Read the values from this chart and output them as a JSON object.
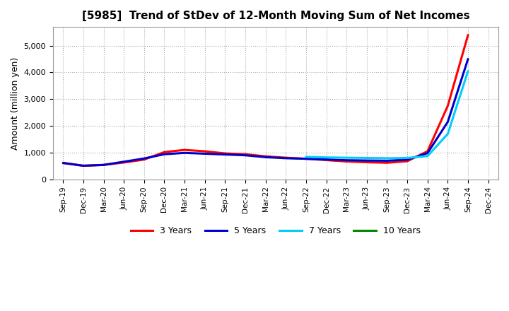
{
  "title": "[5985]  Trend of StDev of 12-Month Moving Sum of Net Incomes",
  "ylabel": "Amount (million yen)",
  "background_color": "#ffffff",
  "grid_color": "#aaaaaa",
  "series": {
    "3 Years": {
      "color": "#ff0000",
      "indices": [
        0,
        1,
        2,
        3,
        4,
        5,
        6,
        7,
        8,
        9,
        10,
        11,
        12,
        13,
        14,
        15,
        16,
        17,
        18,
        19,
        20
      ],
      "values": [
        620,
        510,
        540,
        630,
        740,
        1020,
        1100,
        1050,
        970,
        940,
        860,
        810,
        770,
        720,
        670,
        640,
        620,
        680,
        1050,
        2750,
        5400
      ]
    },
    "5 Years": {
      "color": "#0000cc",
      "indices": [
        0,
        1,
        2,
        3,
        4,
        5,
        6,
        7,
        8,
        9,
        10,
        11,
        12,
        13,
        14,
        15,
        16,
        17,
        18,
        19,
        20
      ],
      "values": [
        610,
        510,
        540,
        660,
        780,
        940,
        990,
        960,
        930,
        900,
        830,
        790,
        770,
        745,
        715,
        705,
        695,
        740,
        980,
        2150,
        4500
      ]
    },
    "7 Years": {
      "color": "#00ccff",
      "indices": [
        12,
        13,
        14,
        15,
        16,
        17,
        18,
        19,
        20
      ],
      "values": [
        840,
        820,
        810,
        800,
        790,
        800,
        870,
        1700,
        4050
      ]
    },
    "10 Years": {
      "color": "#008800",
      "indices": [],
      "values": []
    }
  },
  "yticks": [
    0,
    1000,
    2000,
    3000,
    4000,
    5000
  ],
  "ylim": [
    300,
    5700
  ],
  "xtick_labels": [
    "Sep-19",
    "Dec-19",
    "Mar-20",
    "Jun-20",
    "Sep-20",
    "Dec-20",
    "Mar-21",
    "Jun-21",
    "Sep-21",
    "Dec-21",
    "Mar-22",
    "Jun-22",
    "Sep-22",
    "Dec-22",
    "Mar-23",
    "Jun-23",
    "Sep-23",
    "Dec-23",
    "Mar-24",
    "Jun-24",
    "Sep-24",
    "Dec-24"
  ],
  "legend_items": [
    "3 Years",
    "5 Years",
    "7 Years",
    "10 Years"
  ],
  "legend_colors": [
    "#ff0000",
    "#0000cc",
    "#00ccff",
    "#008800"
  ]
}
